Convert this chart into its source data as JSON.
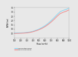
{
  "title": "",
  "xlabel": "Flow (m³/h)",
  "ylabel": "NPSH (m)",
  "xlim": [
    100,
    1000
  ],
  "ylim": [
    0,
    3.5
  ],
  "xticks": [
    100,
    200,
    300,
    400,
    500,
    600,
    700,
    800,
    900,
    1000
  ],
  "yticks": [
    0.5,
    1.0,
    1.5,
    2.0,
    2.5,
    3.0,
    3.5
  ],
  "calculated_color": "#85d4f0",
  "measured_color": "#f08888",
  "legend_calculated": "Calculated NPSH",
  "legend_measured": "NPSH measured",
  "background_color": "#e8e8e8",
  "plot_bg_color": "#e8e8e8",
  "x_data": [
    100,
    150,
    200,
    250,
    300,
    350,
    400,
    450,
    500,
    550,
    600,
    650,
    700,
    750,
    800,
    850,
    900,
    950,
    1000
  ],
  "calculated_y": [
    0.55,
    0.56,
    0.57,
    0.58,
    0.62,
    0.67,
    0.75,
    0.87,
    1.02,
    1.2,
    1.42,
    1.68,
    2.0,
    2.35,
    2.72,
    3.05,
    3.2,
    3.32,
    3.48
  ],
  "measured_y": [
    0.5,
    0.51,
    0.52,
    0.54,
    0.57,
    0.62,
    0.7,
    0.81,
    0.94,
    1.1,
    1.3,
    1.55,
    1.84,
    2.16,
    2.52,
    2.83,
    2.98,
    3.1,
    3.28
  ]
}
